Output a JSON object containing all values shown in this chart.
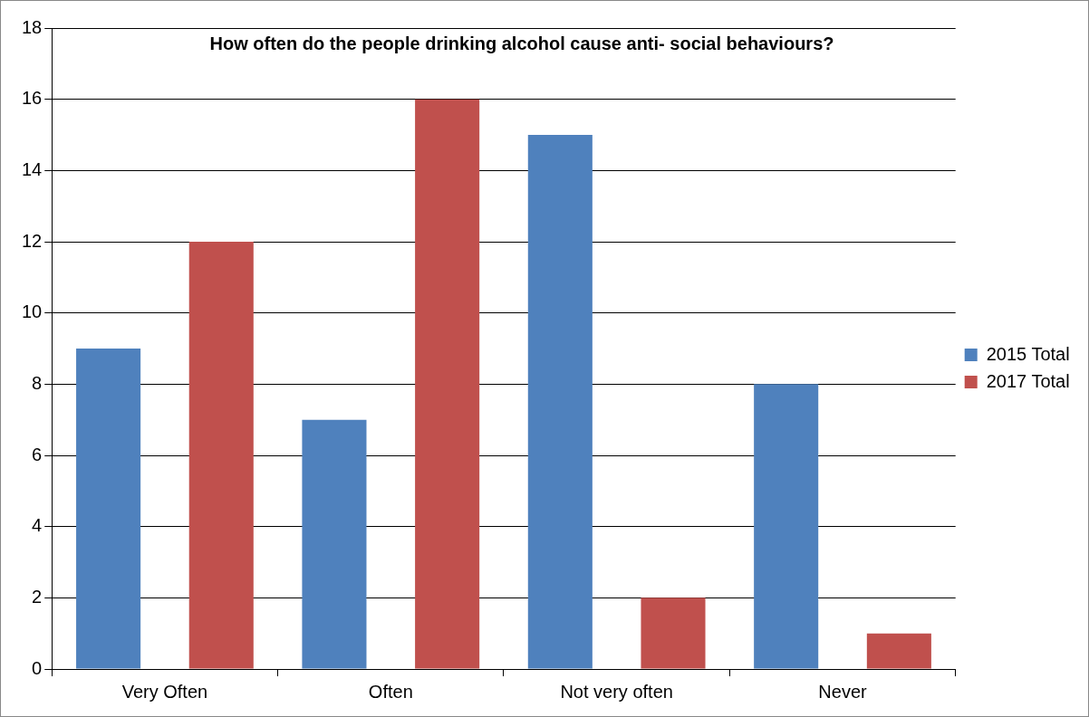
{
  "chart_data": {
    "type": "bar",
    "title": "How often do the people drinking alcohol cause anti- social behaviours?",
    "categories": [
      "Very Often",
      "Often",
      "Not very often",
      "Never"
    ],
    "series": [
      {
        "name": "2015 Total",
        "color": "#4f81bd",
        "values": [
          9,
          7,
          15,
          8
        ]
      },
      {
        "name": "2017 Total",
        "color": "#c0504d",
        "values": [
          12,
          16,
          2,
          1
        ]
      }
    ],
    "ylim": [
      0,
      18
    ],
    "yticks": [
      0,
      2,
      4,
      6,
      8,
      10,
      12,
      14,
      16,
      18
    ],
    "grid": "y",
    "legend": "right"
  }
}
